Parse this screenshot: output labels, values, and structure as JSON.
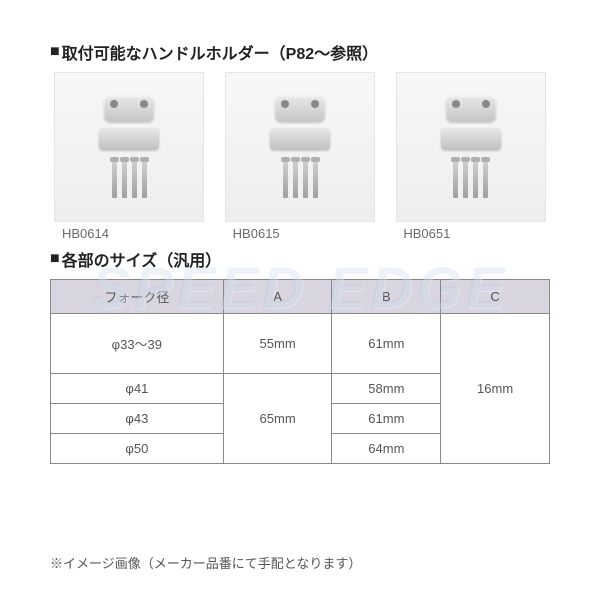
{
  "section1": {
    "title": "取付可能なハンドルホルダー（P82～参照）"
  },
  "products": [
    {
      "label": "HB0614"
    },
    {
      "label": "HB0615"
    },
    {
      "label": "HB0651"
    }
  ],
  "section2": {
    "title": "各部のサイズ（汎用）"
  },
  "table": {
    "headers": {
      "col0": "フォーク径",
      "col1": "A",
      "col2": "B",
      "col3": "C"
    },
    "rows": {
      "r0": {
        "fork": "φ33～39",
        "a": "55mm",
        "b": "61mm"
      },
      "r1": {
        "fork": "φ41",
        "b": "58mm"
      },
      "r2": {
        "fork": "φ43",
        "a_merged": "65mm",
        "b": "61mm"
      },
      "r3": {
        "fork": "φ50",
        "b": "64mm"
      },
      "c_merged": "16mm"
    },
    "header_bg": "#d8d5e0",
    "border_color": "#888888",
    "text_color": "#555555",
    "fontsize": 13
  },
  "watermark": {
    "text": "SPEED EDGE",
    "color_rgba": "rgba(100,150,200,0.12)",
    "fontsize": 58
  },
  "footnote": {
    "text": "※イメージ画像（メーカー品番にて手配となります）"
  },
  "colors": {
    "background": "#ffffff",
    "title": "#222222",
    "label": "#6a6a6a"
  }
}
